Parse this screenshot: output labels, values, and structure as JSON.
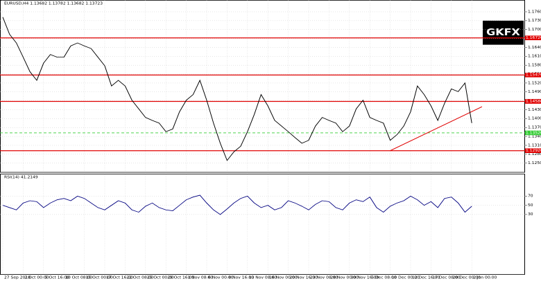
{
  "header": "EURUSD,H4 1.13682 1.13782 1.13682 1.13723",
  "logo": "GKFX",
  "chart_data": [
    {
      "type": "line",
      "categories": [
        "27 Sep 2018",
        null,
        null,
        "2 Oct 00:00",
        null,
        null,
        "5 Oct 16:00",
        null,
        null,
        "10 Oct 08:00",
        null,
        null,
        "15 Oct 00:00",
        null,
        null,
        "17 Oct 16:00",
        null,
        null,
        "22 Oct 08:00",
        null,
        null,
        "25 Oct 00:00",
        null,
        null,
        "29 Oct 16:00",
        null,
        null,
        "1 Nov 08:00",
        null,
        null,
        "6 Nov 00:00",
        null,
        null,
        "8 Nov 16:00",
        null,
        null,
        "13 Nov 08:00",
        null,
        null,
        "16 Nov 00:00",
        null,
        null,
        "20 Nov 16:00",
        null,
        null,
        "23 Nov 08:00",
        null,
        null,
        "28 Nov 00:00",
        null,
        null,
        "30 Nov 16:00",
        null,
        null,
        "5 Dec 08:00",
        null,
        null,
        "10 Dec 00:00",
        null,
        null,
        "12 Dec 16:00",
        null,
        null,
        "17 Dec 08:00",
        null,
        null,
        "20 Dec 00:00",
        null,
        null,
        "2 Jan 00:00"
      ],
      "series": [
        {
          "color": "#000000",
          "values": [
            1.1742,
            1.1684,
            1.1655,
            1.1607,
            1.1558,
            1.1529,
            1.1587,
            1.1616,
            1.1607,
            1.1607,
            1.1645,
            1.1655,
            1.1645,
            1.1636,
            1.1607,
            1.1578,
            1.151,
            1.1529,
            1.151,
            1.1462,
            1.1433,
            1.1404,
            1.1394,
            1.1385,
            1.1356,
            1.1365,
            1.1423,
            1.1462,
            1.1481,
            1.1529,
            1.1462,
            1.1385,
            1.1317,
            1.1259,
            1.1288,
            1.1307,
            1.1356,
            1.1414,
            1.1481,
            1.1443,
            1.1394,
            1.1375,
            1.1356,
            1.1336,
            1.1317,
            1.1327,
            1.1375,
            1.1404,
            1.1394,
            1.1385,
            1.1356,
            1.1375,
            1.1433,
            1.1462,
            1.1404,
            1.1394,
            1.1385,
            1.1327,
            1.1346,
            1.1375,
            1.1423,
            1.151,
            1.1481,
            1.1443,
            1.1394,
            1.1452,
            1.15,
            1.1491,
            1.152,
            1.1385
          ]
        }
      ],
      "ylim": [
        1.122,
        1.179
      ],
      "yticks": [
        {
          "value": 1.125,
          "label": "1.12500"
        },
        {
          "value": 1.128,
          "label": "1.12800"
        },
        {
          "value": 1.131,
          "label": "1.13100"
        },
        {
          "value": 1.134,
          "label": "1.13400"
        },
        {
          "value": 1.137,
          "label": "1.13700"
        },
        {
          "value": 1.14,
          "label": "1.14000"
        },
        {
          "value": 1.143,
          "label": "1.14300"
        },
        {
          "value": 1.146,
          "label": "1.14600"
        },
        {
          "value": 1.149,
          "label": "1.14900"
        },
        {
          "value": 1.152,
          "label": "1.15200"
        },
        {
          "value": 1.155,
          "label": "1.15500"
        },
        {
          "value": 1.158,
          "label": "1.15800"
        },
        {
          "value": 1.161,
          "label": "1.16100"
        },
        {
          "value": 1.164,
          "label": "1.16400"
        },
        {
          "value": 1.167,
          "label": "1.16700"
        },
        {
          "value": 1.17,
          "label": "1.17000"
        },
        {
          "value": 1.173,
          "label": "1.17300"
        },
        {
          "value": 1.176,
          "label": "1.17600"
        }
      ],
      "levels": [
        {
          "value": 1.1672,
          "label": "1.16720",
          "color": "#e00000"
        },
        {
          "value": 1.1547,
          "label": "1.15470",
          "color": "#e00000"
        },
        {
          "value": 1.1458,
          "label": "1.14580",
          "color": "#e00000"
        },
        {
          "value": 1.1292,
          "label": "1.12920",
          "color": "#e00000"
        },
        {
          "value": 1.1352,
          "label": "1.13520",
          "color": "#33cc33"
        }
      ],
      "trendline": {
        "x": [
          57,
          70.5
        ],
        "y": [
          1.1292,
          1.144
        ],
        "color": "#e00000"
      },
      "grid": true
    },
    {
      "type": "line",
      "title": "RSI(14) 41.2149",
      "series": [
        {
          "color": "#000080",
          "values": [
            50,
            45,
            40,
            55,
            60,
            58,
            45,
            55,
            62,
            65,
            60,
            70,
            65,
            55,
            45,
            40,
            50,
            60,
            55,
            40,
            35,
            48,
            55,
            45,
            40,
            38,
            50,
            62,
            68,
            72,
            55,
            40,
            30,
            42,
            55,
            65,
            70,
            55,
            45,
            50,
            40,
            45,
            60,
            55,
            48,
            40,
            52,
            60,
            58,
            45,
            40,
            55,
            62,
            58,
            68,
            45,
            35,
            48,
            55,
            60,
            70,
            62,
            50,
            58,
            45,
            65,
            68,
            55,
            35,
            48
          ]
        }
      ],
      "ylim": [
        0,
        100
      ],
      "yticks": [
        30,
        50,
        70
      ],
      "grid": true
    }
  ]
}
